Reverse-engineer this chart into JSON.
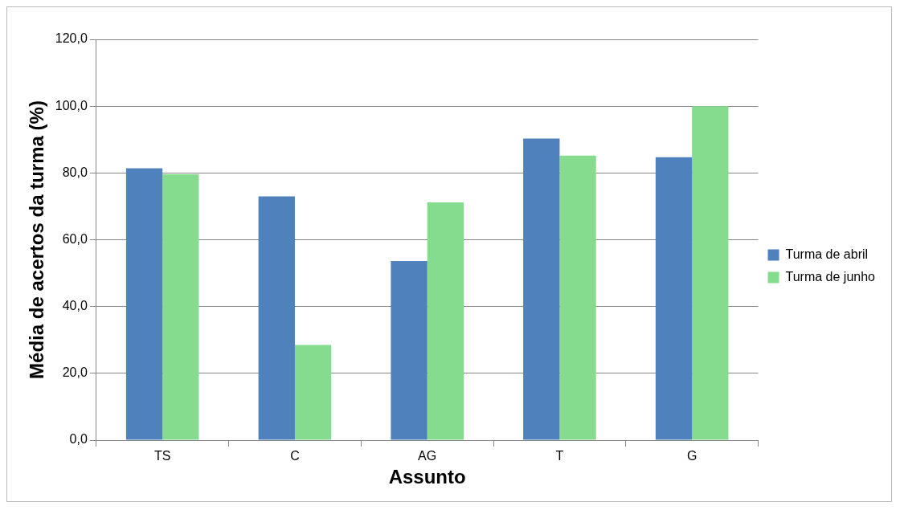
{
  "chart_data": {
    "type": "bar",
    "xlabel": "Assunto",
    "ylabel": "Média de acertos da turma (%)",
    "categories": [
      "TS",
      "C",
      "AG",
      "T",
      "G"
    ],
    "series": [
      {
        "name": "Turma de abril",
        "color": "#4f81bd",
        "values": [
          81.4,
          73.0,
          53.6,
          90.3,
          84.7
        ]
      },
      {
        "name": "Turma de junho",
        "color": "#86dc8e",
        "values": [
          79.6,
          28.5,
          71.2,
          85.2,
          100.0
        ]
      }
    ],
    "ylim": [
      0,
      120
    ],
    "yticks": [
      {
        "value": 0,
        "label": "0,0"
      },
      {
        "value": 20,
        "label": "20,0"
      },
      {
        "value": 40,
        "label": "40,0"
      },
      {
        "value": 60,
        "label": "60,0"
      },
      {
        "value": 80,
        "label": "80,0"
      },
      {
        "value": 100,
        "label": "100,0"
      },
      {
        "value": 120,
        "label": "120,0"
      }
    ],
    "grid": "y",
    "legend": "right"
  }
}
